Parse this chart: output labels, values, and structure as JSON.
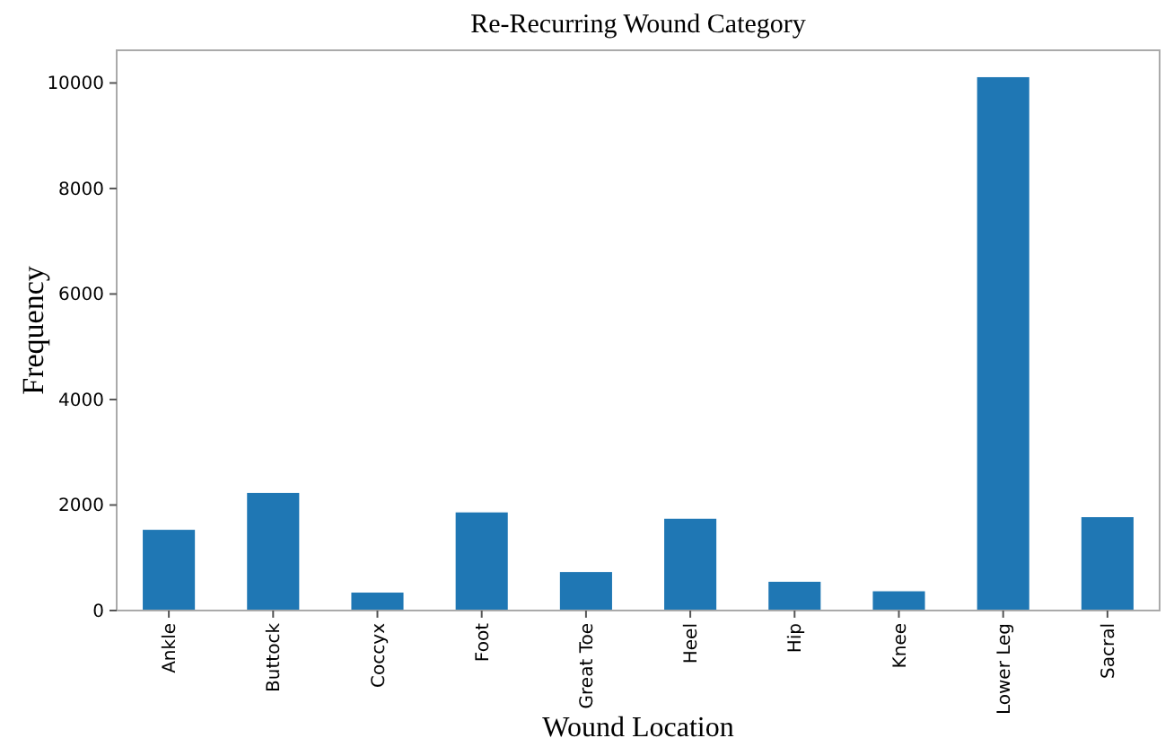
{
  "chart_data": {
    "type": "bar",
    "title": "Re-Recurring Wound Category",
    "xlabel": "Wound Location",
    "ylabel": "Frequency",
    "categories": [
      "Ankle",
      "Buttock",
      "Coccyx",
      "Foot",
      "Great Toe",
      "Heel",
      "Hip",
      "Knee",
      "Lower Leg",
      "Sacral"
    ],
    "values": [
      1530,
      2230,
      340,
      1860,
      730,
      1740,
      545,
      365,
      10110,
      1770
    ],
    "color": "#1f77b4",
    "ylim": [
      0,
      10620
    ],
    "yticks": [
      0,
      2000,
      4000,
      6000,
      8000,
      10000
    ],
    "grid": false
  }
}
